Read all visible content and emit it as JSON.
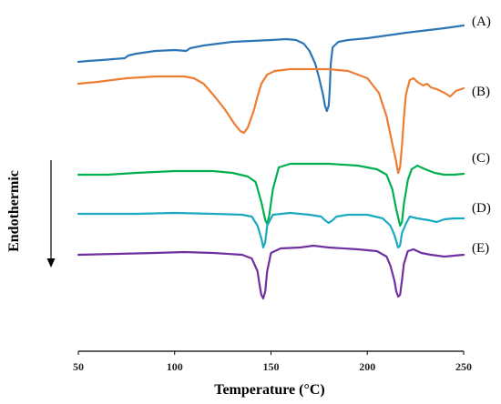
{
  "chart_data": {
    "type": "line",
    "title": "",
    "xlabel": "Temperature (°C)",
    "ylabel": "Endothermic",
    "xlim": [
      50,
      250
    ],
    "x_ticks": [
      "50",
      "100",
      "150",
      "200",
      "250"
    ],
    "y_axis_ticks_shown": false,
    "grid": false,
    "legend": "none",
    "series": [
      {
        "label": "(A)",
        "color": "#2E75B6",
        "points": [
          [
            50,
            60
          ],
          [
            55,
            59
          ],
          [
            62,
            58
          ],
          [
            68,
            57
          ],
          [
            74,
            56
          ],
          [
            76,
            53
          ],
          [
            80,
            51
          ],
          [
            90,
            48
          ],
          [
            100,
            47
          ],
          [
            106,
            48
          ],
          [
            108,
            45
          ],
          [
            115,
            42
          ],
          [
            130,
            38
          ],
          [
            150,
            36
          ],
          [
            158,
            35
          ],
          [
            163,
            36
          ],
          [
            167,
            40
          ],
          [
            170,
            48
          ],
          [
            173,
            62
          ],
          [
            175,
            78
          ],
          [
            177,
            96
          ],
          [
            178,
            108
          ],
          [
            179,
            114
          ],
          [
            180,
            108
          ],
          [
            180.5,
            90
          ],
          [
            181,
            62
          ],
          [
            182,
            44
          ],
          [
            185,
            38
          ],
          [
            190,
            36
          ],
          [
            200,
            34
          ],
          [
            220,
            28
          ],
          [
            240,
            23
          ],
          [
            250,
            20
          ]
        ]
      },
      {
        "label": "(B)",
        "color": "#ED7D31",
        "points": [
          [
            50,
            84
          ],
          [
            60,
            82
          ],
          [
            75,
            78
          ],
          [
            90,
            76
          ],
          [
            105,
            76
          ],
          [
            110,
            78
          ],
          [
            115,
            84
          ],
          [
            120,
            96
          ],
          [
            126,
            112
          ],
          [
            131,
            128
          ],
          [
            134,
            136
          ],
          [
            136,
            138
          ],
          [
            138,
            132
          ],
          [
            141,
            114
          ],
          [
            143,
            98
          ],
          [
            145,
            84
          ],
          [
            148,
            74
          ],
          [
            152,
            70
          ],
          [
            160,
            68
          ],
          [
            180,
            68
          ],
          [
            190,
            70
          ],
          [
            200,
            78
          ],
          [
            206,
            94
          ],
          [
            210,
            120
          ],
          [
            213,
            150
          ],
          [
            215,
            170
          ],
          [
            216,
            182
          ],
          [
            217,
            176
          ],
          [
            218,
            152
          ],
          [
            219,
            122
          ],
          [
            220,
            96
          ],
          [
            222,
            80
          ],
          [
            224,
            78
          ],
          [
            226,
            82
          ],
          [
            229,
            86
          ],
          [
            231,
            84
          ],
          [
            233,
            88
          ],
          [
            236,
            90
          ],
          [
            240,
            94
          ],
          [
            243,
            98
          ],
          [
            246,
            92
          ],
          [
            250,
            89
          ]
        ]
      },
      {
        "label": "(C)",
        "color": "#00B050",
        "points": [
          [
            50,
            184
          ],
          [
            65,
            184
          ],
          [
            80,
            182
          ],
          [
            100,
            180
          ],
          [
            120,
            180
          ],
          [
            130,
            182
          ],
          [
            138,
            186
          ],
          [
            142,
            192
          ],
          [
            145,
            214
          ],
          [
            147,
            234
          ],
          [
            148,
            238
          ],
          [
            149,
            230
          ],
          [
            151,
            200
          ],
          [
            154,
            176
          ],
          [
            160,
            172
          ],
          [
            180,
            172
          ],
          [
            195,
            174
          ],
          [
            205,
            178
          ],
          [
            210,
            184
          ],
          [
            213,
            200
          ],
          [
            215,
            222
          ],
          [
            217,
            240
          ],
          [
            218,
            236
          ],
          [
            219,
            216
          ],
          [
            221,
            190
          ],
          [
            223,
            178
          ],
          [
            226,
            174
          ],
          [
            230,
            178
          ],
          [
            235,
            182
          ],
          [
            240,
            184
          ],
          [
            245,
            184
          ],
          [
            250,
            183
          ]
        ]
      },
      {
        "label": "(D)",
        "color": "#1BA9C0",
        "points": [
          [
            50,
            227
          ],
          [
            65,
            227
          ],
          [
            80,
            227
          ],
          [
            100,
            226
          ],
          [
            120,
            227
          ],
          [
            135,
            228
          ],
          [
            140,
            230
          ],
          [
            143,
            240
          ],
          [
            145,
            254
          ],
          [
            146,
            264
          ],
          [
            147,
            258
          ],
          [
            148,
            240
          ],
          [
            151,
            228
          ],
          [
            160,
            226
          ],
          [
            170,
            228
          ],
          [
            176,
            230
          ],
          [
            178,
            234
          ],
          [
            180,
            237
          ],
          [
            182,
            234
          ],
          [
            184,
            230
          ],
          [
            190,
            228
          ],
          [
            200,
            228
          ],
          [
            208,
            232
          ],
          [
            212,
            240
          ],
          [
            214,
            250
          ],
          [
            216,
            264
          ],
          [
            217,
            262
          ],
          [
            218,
            248
          ],
          [
            220,
            238
          ],
          [
            222,
            230
          ],
          [
            226,
            232
          ],
          [
            232,
            234
          ],
          [
            236,
            236
          ],
          [
            240,
            233
          ],
          [
            245,
            232
          ],
          [
            250,
            232
          ]
        ]
      },
      {
        "label": "(E)",
        "color": "#7030A0",
        "points": [
          [
            50,
            272
          ],
          [
            70,
            271
          ],
          [
            90,
            270
          ],
          [
            105,
            269
          ],
          [
            120,
            270
          ],
          [
            135,
            272
          ],
          [
            140,
            276
          ],
          [
            143,
            290
          ],
          [
            144,
            304
          ],
          [
            145,
            316
          ],
          [
            146,
            320
          ],
          [
            147,
            312
          ],
          [
            148,
            290
          ],
          [
            150,
            270
          ],
          [
            155,
            265
          ],
          [
            165,
            264
          ],
          [
            172,
            262
          ],
          [
            180,
            264
          ],
          [
            195,
            266
          ],
          [
            205,
            268
          ],
          [
            210,
            274
          ],
          [
            212,
            284
          ],
          [
            214,
            300
          ],
          [
            215,
            312
          ],
          [
            216,
            318
          ],
          [
            217,
            316
          ],
          [
            218,
            300
          ],
          [
            219,
            282
          ],
          [
            221,
            268
          ],
          [
            224,
            266
          ],
          [
            228,
            270
          ],
          [
            233,
            272
          ],
          [
            240,
            274
          ],
          [
            245,
            273
          ],
          [
            250,
            272
          ]
        ]
      }
    ]
  }
}
